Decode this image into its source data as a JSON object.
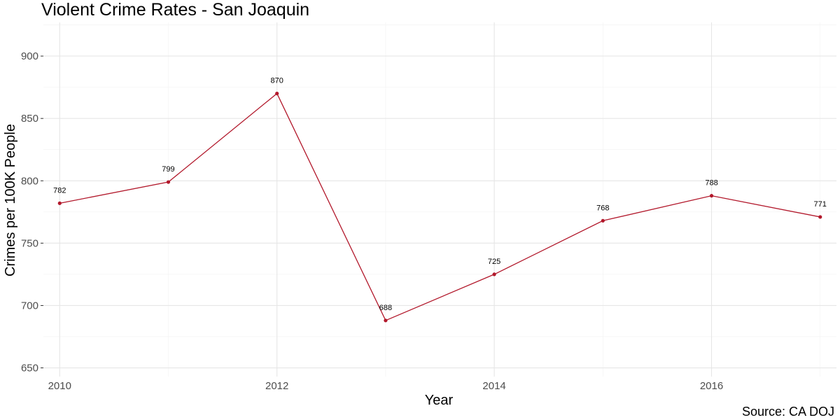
{
  "chart_data": {
    "type": "line",
    "title": "Violent Crime Rates - San Joaquin",
    "xlabel": "Year",
    "ylabel": "Crimes per 100K People",
    "caption": "Source: CA DOJ",
    "x": [
      2010,
      2011,
      2012,
      2013,
      2014,
      2015,
      2016,
      2017
    ],
    "values": [
      782,
      799,
      870,
      688,
      725,
      768,
      788,
      771
    ],
    "data_labels": [
      "782",
      "799",
      "870",
      "688",
      "725",
      "768",
      "788",
      "771"
    ],
    "x_ticks": [
      2010,
      2012,
      2014,
      2016
    ],
    "x_tick_labels": [
      "2010",
      "2012",
      "2014",
      "2016"
    ],
    "y_ticks": [
      650,
      700,
      750,
      800,
      850,
      900
    ],
    "y_tick_labels": [
      "650",
      "700",
      "750",
      "800",
      "850",
      "900"
    ],
    "xlim": [
      2009.85,
      2017.15
    ],
    "ylim": [
      643,
      927
    ],
    "grid": true,
    "line_color": "#b2182b"
  }
}
